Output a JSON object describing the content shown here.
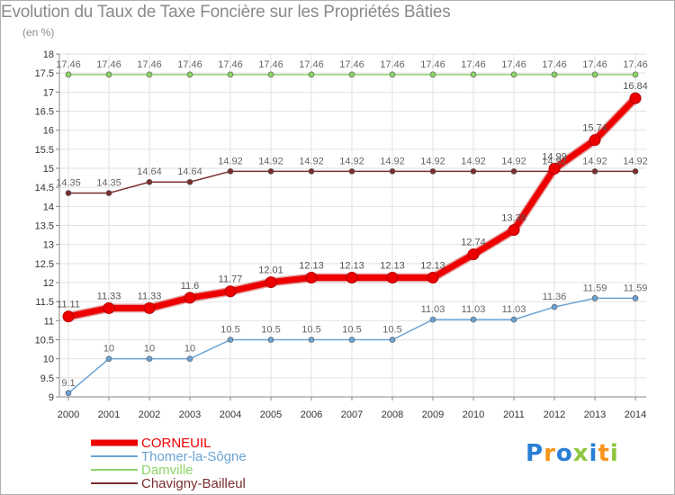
{
  "header": {
    "title": "Evolution du Taux de Taxe Foncière sur les Propriétés Bâties",
    "unit": "(en %)"
  },
  "logo": {
    "text": "Proxiti",
    "letters": [
      "P",
      "r",
      "o",
      "x",
      "i",
      "t",
      "i"
    ],
    "colors": [
      "#2a7fd4",
      "#f7941d",
      "#2a7fd4",
      "#8dc63f",
      "#2a7fd4",
      "#f7941d",
      "#8dc63f"
    ]
  },
  "chart_data": {
    "type": "line",
    "title": "Evolution du Taux de Taxe Foncière sur les Propriétés Bâties",
    "ylabel": "(en %)",
    "xlabel": "",
    "ylim": [
      9,
      18
    ],
    "yticks": [
      "9",
      "9.5",
      "10",
      "10.5",
      "11",
      "11.5",
      "12",
      "12.5",
      "13",
      "13.5",
      "14",
      "14.5",
      "15",
      "15.5",
      "16",
      "16.5",
      "17",
      "17.5",
      "18"
    ],
    "x": [
      "2000",
      "2001",
      "2002",
      "2003",
      "2004",
      "2005",
      "2006",
      "2007",
      "2008",
      "2009",
      "2010",
      "2011",
      "2012",
      "2013",
      "2014"
    ],
    "series": [
      {
        "name": "Damville",
        "color": "#8dd468",
        "emphasis": false,
        "values": [
          17.46,
          17.46,
          17.46,
          17.46,
          17.46,
          17.46,
          17.46,
          17.46,
          17.46,
          17.46,
          17.46,
          17.46,
          17.46,
          17.46,
          17.46
        ],
        "labels": [
          "17.46",
          "17.46",
          "17.46",
          "17.46",
          "17.46",
          "17.46",
          "17.46",
          "17.46",
          "17.46",
          "17.46",
          "17.46",
          "17.46",
          "17.46",
          "17.46",
          "17.46"
        ]
      },
      {
        "name": "Chavigny-Bailleul",
        "color": "#7a2e2e",
        "emphasis": false,
        "values": [
          14.35,
          14.35,
          14.64,
          14.64,
          14.92,
          14.92,
          14.92,
          14.92,
          14.92,
          14.92,
          14.92,
          14.92,
          14.92,
          14.92,
          14.92
        ],
        "labels": [
          "14.35",
          "14.35",
          "14.64",
          "14.64",
          "14.92",
          "14.92",
          "14.92",
          "14.92",
          "14.92",
          "14.92",
          "14.92",
          "14.92",
          "14.92",
          "14.92",
          "14.92"
        ]
      },
      {
        "name": "Thomer-la-Sôgne",
        "color": "#6aa3d4",
        "emphasis": false,
        "values": [
          9.1,
          10,
          10,
          10,
          10.5,
          10.5,
          10.5,
          10.5,
          10.5,
          11.03,
          11.03,
          11.03,
          11.36,
          11.59,
          11.59
        ],
        "labels": [
          "9.1",
          "10",
          "10",
          "10",
          "10.5",
          "10.5",
          "10.5",
          "10.5",
          "10.5",
          "11.03",
          "11.03",
          "11.03",
          "11.36",
          "11.59",
          "11.59"
        ]
      },
      {
        "name": "CORNEUIL",
        "color": "#ee0000",
        "emphasis": true,
        "values": [
          11.11,
          11.33,
          11.33,
          11.6,
          11.77,
          12.01,
          12.13,
          12.13,
          12.13,
          12.13,
          12.74,
          13.38,
          14.99,
          15.74,
          16.84
        ],
        "labels": [
          "11.11",
          "11.33",
          "11.33",
          "11.6",
          "11.77",
          "12.01",
          "12.13",
          "12.13",
          "12.13",
          "12.13",
          "12.74",
          "13.38",
          "14.99",
          "15.74",
          "16.84"
        ]
      }
    ],
    "legend": {
      "placement": "bottom-left",
      "order": [
        "CORNEUIL",
        "Thomer-la-Sôgne",
        "Damville",
        "Chavigny-Bailleul"
      ]
    }
  }
}
